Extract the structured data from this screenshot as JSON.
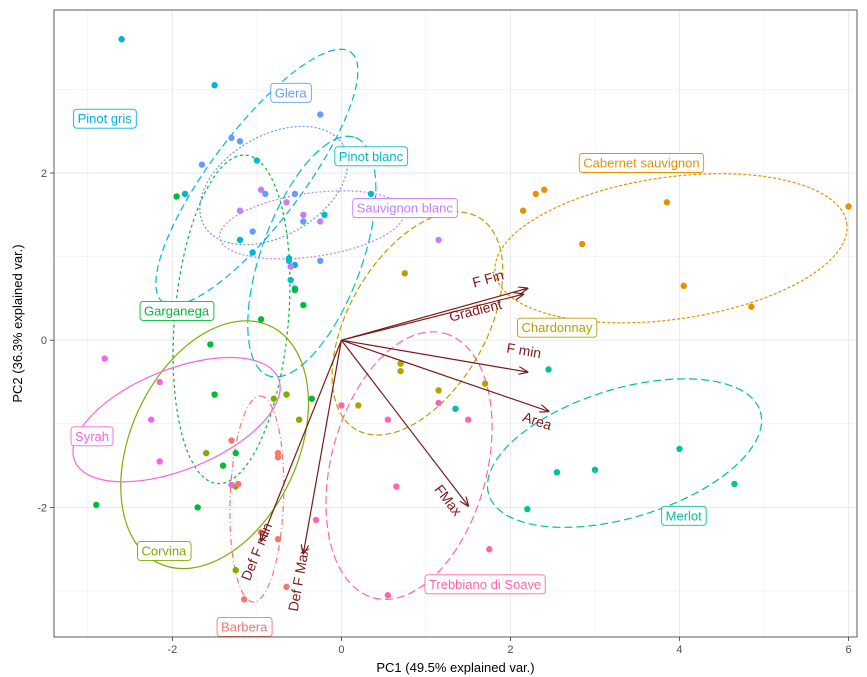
{
  "chart_data": {
    "type": "scatter",
    "title": "",
    "xlabel": "PC1 (49.5% explained var.)",
    "ylabel": "PC2 (36.3% explained var.)",
    "xlim": [
      -3.4,
      6.1
    ],
    "ylim": [
      -3.55,
      3.95
    ],
    "x_ticks": [
      -2,
      0,
      2,
      4,
      6
    ],
    "y_ticks": [
      -2,
      0,
      2
    ],
    "x_tick_labels": [
      "-2",
      "0",
      "2",
      "4",
      "6"
    ],
    "y_tick_labels": [
      "-2",
      "0",
      "2"
    ],
    "grid": true,
    "arrow_color": "#7b1a1a",
    "series": [
      {
        "name": "Pinot gris",
        "color": "#00b4d8",
        "dash": "7,4",
        "ellipse": {
          "cx": -1.0,
          "cy": 1.95,
          "rx": 1.85,
          "ry": 0.55,
          "angle": -53
        },
        "label_pos": [
          -2.8,
          2.65
        ],
        "points": [
          [
            -2.6,
            3.6
          ],
          [
            -1.5,
            3.05
          ],
          [
            -1.85,
            1.75
          ],
          [
            -1.2,
            1.2
          ],
          [
            -1.05,
            1.05
          ],
          [
            -0.62,
            0.98
          ],
          [
            -0.55,
            0.9
          ]
        ]
      },
      {
        "name": "Glera",
        "color": "#619cff",
        "dash": "2,2",
        "ellipse": {
          "cx": -0.8,
          "cy": 1.85,
          "rx": 0.95,
          "ry": 0.6,
          "angle": -30
        },
        "label_pos": [
          -0.6,
          2.96
        ],
        "points": [
          [
            -1.65,
            2.1
          ],
          [
            -1.3,
            2.42
          ],
          [
            -1.2,
            2.38
          ],
          [
            -0.9,
            1.75
          ],
          [
            -0.55,
            1.75
          ],
          [
            -0.45,
            1.42
          ],
          [
            -0.25,
            2.7
          ],
          [
            -0.25,
            0.95
          ],
          [
            -1.05,
            1.3
          ]
        ]
      },
      {
        "name": "Pinot blanc",
        "color": "#00bfc4",
        "dash": "9,4",
        "ellipse": {
          "cx": -0.35,
          "cy": 1.0,
          "rx": 1.5,
          "ry": 0.6,
          "angle": -70
        },
        "label_pos": [
          0.35,
          2.2
        ],
        "points": [
          [
            -1.0,
            2.15
          ],
          [
            0.35,
            1.75
          ],
          [
            -0.62,
            0.95
          ],
          [
            -0.6,
            0.72
          ],
          [
            -0.55,
            0.62
          ],
          [
            -0.2,
            1.5
          ]
        ]
      },
      {
        "name": "Sauvignon blanc",
        "color": "#c77cff",
        "dash": "2,2",
        "ellipse": {
          "cx": -0.35,
          "cy": 1.38,
          "rx": 1.1,
          "ry": 0.38,
          "angle": -8
        },
        "label_pos": [
          0.75,
          1.58
        ],
        "points": [
          [
            -0.95,
            1.8
          ],
          [
            -0.65,
            1.65
          ],
          [
            -0.6,
            0.88
          ],
          [
            -0.45,
            1.5
          ],
          [
            -0.25,
            1.42
          ],
          [
            0.35,
            1.5
          ],
          [
            1.15,
            1.2
          ],
          [
            -1.2,
            1.55
          ]
        ]
      },
      {
        "name": "Garganega",
        "color": "#00ba38",
        "dash": "3,3",
        "ellipse": {
          "cx": -1.3,
          "cy": 0.25,
          "rx": 1.95,
          "ry": 0.68,
          "angle": -85
        },
        "label_pos": [
          -1.95,
          0.35
        ],
        "points": [
          [
            -1.95,
            1.72
          ],
          [
            -1.55,
            -0.05
          ],
          [
            -1.5,
            -0.65
          ],
          [
            -1.4,
            -1.5
          ],
          [
            -1.25,
            -1.35
          ],
          [
            -0.95,
            0.25
          ],
          [
            -0.55,
            0.6
          ],
          [
            -0.45,
            0.42
          ],
          [
            -0.35,
            -0.7
          ],
          [
            -1.7,
            -2.0
          ],
          [
            -2.9,
            -1.97
          ]
        ]
      },
      {
        "name": "Corvina",
        "color": "#7cae00",
        "dash": "",
        "ellipse": {
          "cx": -1.5,
          "cy": -1.25,
          "rx": 1.55,
          "ry": 1.0,
          "angle": -65
        },
        "label_pos": [
          -2.1,
          -2.52
        ],
        "points": [
          [
            -1.25,
            -1.75
          ],
          [
            -0.8,
            -0.7
          ],
          [
            -0.65,
            -0.65
          ],
          [
            -0.5,
            -0.95
          ],
          [
            -1.25,
            -2.75
          ],
          [
            -1.6,
            -1.35
          ]
        ]
      },
      {
        "name": "Syrah",
        "color": "#f564e3",
        "dash": "",
        "ellipse": {
          "cx": -1.95,
          "cy": -0.95,
          "rx": 1.3,
          "ry": 0.6,
          "angle": -22
        },
        "label_pos": [
          -2.95,
          -1.15
        ],
        "points": [
          [
            -2.8,
            -0.22
          ],
          [
            -2.25,
            -0.95
          ],
          [
            -2.15,
            -1.45
          ],
          [
            -1.3,
            -1.73
          ],
          [
            -2.15,
            -0.5
          ]
        ]
      },
      {
        "name": "Barbera",
        "color": "#f8766d",
        "dash": "6,3,1,3",
        "ellipse": {
          "cx": -1.0,
          "cy": -1.9,
          "rx": 1.22,
          "ry": 0.32,
          "angle": -88
        },
        "label_pos": [
          -1.15,
          -3.43
        ],
        "points": [
          [
            -1.3,
            -1.2
          ],
          [
            -1.22,
            -1.72
          ],
          [
            -0.75,
            -1.35
          ],
          [
            -0.75,
            -1.4
          ],
          [
            -1.15,
            -3.1
          ],
          [
            -0.95,
            -2.3
          ],
          [
            -0.65,
            -2.95
          ],
          [
            -0.75,
            -2.38
          ]
        ]
      },
      {
        "name": "Trebbiano  di  Soave",
        "color": "#ff64b0",
        "dash": "8,4",
        "ellipse": {
          "cx": 0.8,
          "cy": -1.5,
          "rx": 1.62,
          "ry": 0.93,
          "angle": -75
        },
        "label_pos": [
          1.7,
          -2.92
        ],
        "points": [
          [
            0.0,
            -0.78
          ],
          [
            0.55,
            -0.95
          ],
          [
            0.65,
            -1.75
          ],
          [
            1.15,
            -0.75
          ],
          [
            1.5,
            -0.95
          ],
          [
            1.75,
            -2.5
          ],
          [
            0.55,
            -3.05
          ],
          [
            -0.3,
            -2.15
          ]
        ]
      },
      {
        "name": "Chardonnay",
        "color": "#b79f00",
        "dash": "6,3",
        "ellipse": {
          "cx": 0.9,
          "cy": 0.2,
          "rx": 1.45,
          "ry": 0.82,
          "angle": -60
        },
        "label_pos": [
          2.55,
          0.15
        ],
        "points": [
          [
            0.2,
            -0.78
          ],
          [
            0.7,
            -0.28
          ],
          [
            0.75,
            0.8
          ],
          [
            1.15,
            -0.6
          ],
          [
            1.7,
            -0.52
          ],
          [
            0.7,
            -0.37
          ]
        ]
      },
      {
        "name": "Cabernet  sauvignon",
        "color": "#e69100",
        "dash": "3,2",
        "ellipse": {
          "cx": 3.9,
          "cy": 1.1,
          "rx": 2.1,
          "ry": 0.85,
          "angle": -8
        },
        "label_pos": [
          3.55,
          2.12
        ],
        "points": [
          [
            2.15,
            1.55
          ],
          [
            2.3,
            1.75
          ],
          [
            2.4,
            1.8
          ],
          [
            2.85,
            1.15
          ],
          [
            3.85,
            1.65
          ],
          [
            4.05,
            0.65
          ],
          [
            4.85,
            0.4
          ],
          [
            6.0,
            1.6
          ]
        ]
      },
      {
        "name": "Merlot",
        "color": "#00c19a",
        "dash": "8,4",
        "ellipse": {
          "cx": 3.35,
          "cy": -1.35,
          "rx": 1.68,
          "ry": 0.77,
          "angle": -17
        },
        "label_pos": [
          4.05,
          -2.1
        ],
        "points": [
          [
            2.45,
            -0.35
          ],
          [
            1.35,
            -0.82
          ],
          [
            2.2,
            -2.02
          ],
          [
            2.55,
            -1.58
          ],
          [
            3.0,
            -1.55
          ],
          [
            4.0,
            -1.3
          ],
          [
            4.65,
            -1.72
          ]
        ]
      }
    ],
    "loadings": [
      {
        "name": "F Fin",
        "end": [
          2.2,
          0.62
        ],
        "label_pos": [
          1.75,
          0.68
        ]
      },
      {
        "name": "Gradient",
        "end": [
          2.15,
          0.55
        ],
        "label_pos": [
          1.6,
          0.3
        ]
      },
      {
        "name": "F min",
        "end": [
          2.2,
          -0.38
        ],
        "label_pos": [
          2.15,
          -0.18
        ]
      },
      {
        "name": "Area",
        "end": [
          2.45,
          -0.85
        ],
        "label_pos": [
          2.3,
          -1.02
        ]
      },
      {
        "name": "FMax",
        "end": [
          1.5,
          -1.98
        ],
        "label_pos": [
          1.22,
          -1.95
        ]
      },
      {
        "name": "Def F min",
        "end": [
          -0.95,
          -2.4
        ],
        "label_pos": [
          -0.95,
          -2.55
        ]
      },
      {
        "name": "Def F Max",
        "end": [
          -0.45,
          -2.55
        ],
        "label_pos": [
          -0.45,
          -2.87
        ]
      }
    ]
  }
}
